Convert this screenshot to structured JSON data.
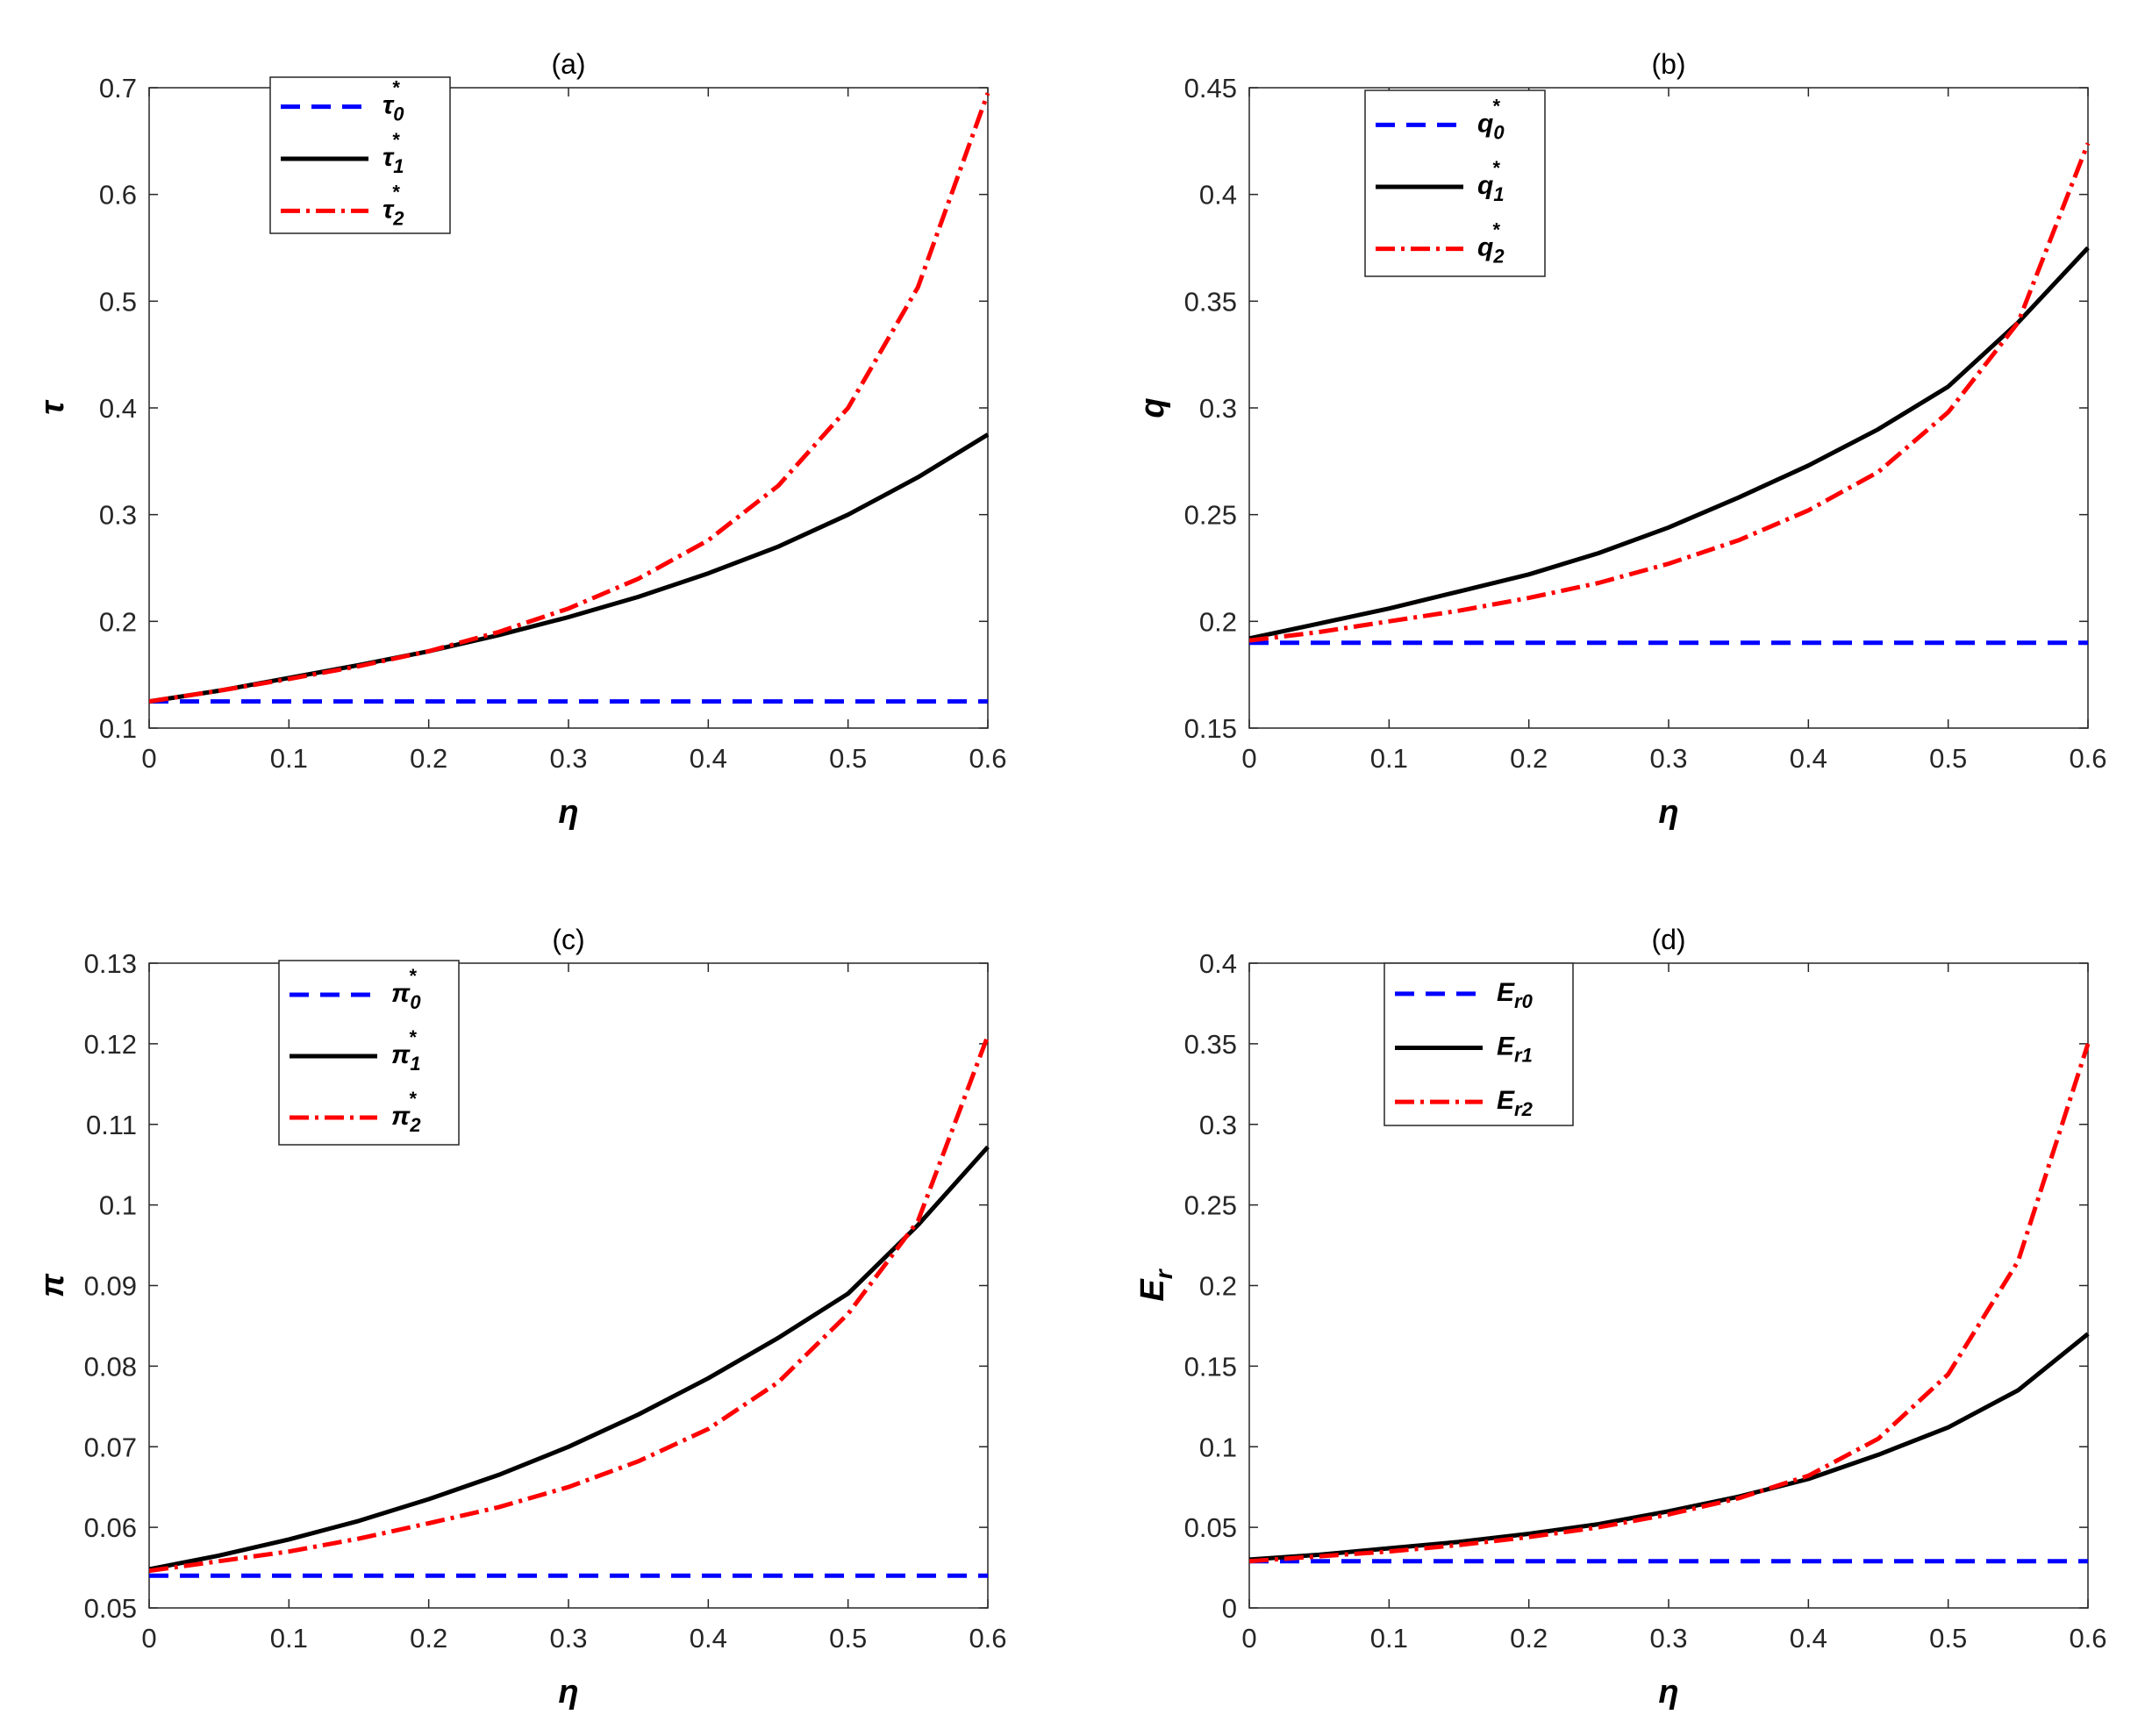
{
  "chart_data": [
    {
      "type": "line",
      "title": "(a)",
      "xlabel": "η",
      "ylabel": "τ",
      "xlim": [
        0,
        0.6
      ],
      "ylim": [
        0.1,
        0.7
      ],
      "xticks": [
        "0",
        "0.1",
        "0.2",
        "0.3",
        "0.4",
        "0.5",
        "0.6"
      ],
      "yticks": [
        "0.1",
        "0.2",
        "0.3",
        "0.4",
        "0.5",
        "0.6",
        "0.7"
      ],
      "legend_position": "top-left",
      "x": [
        0,
        0.05,
        0.1,
        0.15,
        0.2,
        0.25,
        0.3,
        0.35,
        0.4,
        0.45,
        0.5,
        0.55,
        0.6
      ],
      "series": [
        {
          "name": "τ*0",
          "base": "τ",
          "sub": "0",
          "sup": "*",
          "style": "dashed",
          "color": "#0000FF",
          "values": [
            0.125,
            0.125,
            0.125,
            0.125,
            0.125,
            0.125,
            0.125,
            0.125,
            0.125,
            0.125,
            0.125,
            0.125,
            0.125
          ]
        },
        {
          "name": "τ*1",
          "base": "τ",
          "sub": "1",
          "sup": "*",
          "style": "solid",
          "color": "#000000",
          "values": [
            0.125,
            0.135,
            0.147,
            0.159,
            0.172,
            0.187,
            0.204,
            0.223,
            0.245,
            0.27,
            0.3,
            0.335,
            0.375
          ]
        },
        {
          "name": "τ*2",
          "base": "τ",
          "sub": "2",
          "sup": "*",
          "style": "dashdot",
          "color": "#FF0000",
          "values": [
            0.125,
            0.135,
            0.146,
            0.158,
            0.172,
            0.19,
            0.212,
            0.24,
            0.276,
            0.327,
            0.4,
            0.513,
            0.695
          ]
        }
      ]
    },
    {
      "type": "line",
      "title": "(b)",
      "xlabel": "η",
      "ylabel": "q",
      "xlim": [
        0,
        0.6
      ],
      "ylim": [
        0.15,
        0.45
      ],
      "xticks": [
        "0",
        "0.1",
        "0.2",
        "0.3",
        "0.4",
        "0.5",
        "0.6"
      ],
      "yticks": [
        "0.15",
        "0.2",
        "0.25",
        "0.3",
        "0.35",
        "0.4",
        "0.45"
      ],
      "legend_position": "top-left",
      "x": [
        0,
        0.05,
        0.1,
        0.15,
        0.2,
        0.25,
        0.3,
        0.35,
        0.4,
        0.45,
        0.5,
        0.55,
        0.6
      ],
      "series": [
        {
          "name": "q*0",
          "base": "q",
          "sub": "0",
          "sup": "*",
          "style": "dashed",
          "color": "#0000FF",
          "values": [
            0.19,
            0.19,
            0.19,
            0.19,
            0.19,
            0.19,
            0.19,
            0.19,
            0.19,
            0.19,
            0.19,
            0.19,
            0.19
          ]
        },
        {
          "name": "q*1",
          "base": "q",
          "sub": "1",
          "sup": "*",
          "style": "solid",
          "color": "#000000",
          "values": [
            0.192,
            0.199,
            0.206,
            0.214,
            0.222,
            0.232,
            0.244,
            0.258,
            0.273,
            0.29,
            0.31,
            0.34,
            0.375
          ]
        },
        {
          "name": "q*2",
          "base": "q",
          "sub": "2",
          "sup": "*",
          "style": "dashdot",
          "color": "#FF0000",
          "values": [
            0.191,
            0.195,
            0.2,
            0.205,
            0.211,
            0.218,
            0.227,
            0.238,
            0.252,
            0.27,
            0.298,
            0.34,
            0.424
          ]
        }
      ]
    },
    {
      "type": "line",
      "title": "(c)",
      "xlabel": "η",
      "ylabel": "π",
      "xlim": [
        0,
        0.6
      ],
      "ylim": [
        0.05,
        0.13
      ],
      "xticks": [
        "0",
        "0.1",
        "0.2",
        "0.3",
        "0.4",
        "0.5",
        "0.6"
      ],
      "yticks": [
        "0.05",
        "0.06",
        "0.07",
        "0.08",
        "0.09",
        "0.1",
        "0.11",
        "0.12",
        "0.13"
      ],
      "legend_position": "top-left",
      "x": [
        0,
        0.05,
        0.1,
        0.15,
        0.2,
        0.25,
        0.3,
        0.35,
        0.4,
        0.45,
        0.5,
        0.55,
        0.6
      ],
      "series": [
        {
          "name": "π*0",
          "base": "π",
          "sub": "0",
          "sup": "*",
          "style": "dashed",
          "color": "#0000FF",
          "values": [
            0.054,
            0.054,
            0.054,
            0.054,
            0.054,
            0.054,
            0.054,
            0.054,
            0.054,
            0.054,
            0.054,
            0.054,
            0.054
          ]
        },
        {
          "name": "π*1",
          "base": "π",
          "sub": "1",
          "sup": "*",
          "style": "solid",
          "color": "#000000",
          "values": [
            0.0548,
            0.0565,
            0.0585,
            0.0608,
            0.0635,
            0.0665,
            0.07,
            0.074,
            0.0785,
            0.0835,
            0.089,
            0.0975,
            0.1072
          ]
        },
        {
          "name": "π*2",
          "base": "π",
          "sub": "2",
          "sup": "*",
          "style": "dashdot",
          "color": "#FF0000",
          "values": [
            0.0546,
            0.0558,
            0.057,
            0.0586,
            0.0605,
            0.0625,
            0.065,
            0.0682,
            0.0722,
            0.078,
            0.0865,
            0.098,
            0.121
          ]
        }
      ]
    },
    {
      "type": "line",
      "title": "(d)",
      "xlabel": "η",
      "ylabel": "E",
      "ylabel_sub": "r",
      "xlim": [
        0,
        0.6
      ],
      "ylim": [
        0,
        0.4
      ],
      "xticks": [
        "0",
        "0.1",
        "0.2",
        "0.3",
        "0.4",
        "0.5",
        "0.6"
      ],
      "yticks": [
        "0",
        "0.05",
        "0.1",
        "0.15",
        "0.2",
        "0.25",
        "0.3",
        "0.35",
        "0.4"
      ],
      "legend_position": "top-left",
      "x": [
        0,
        0.05,
        0.1,
        0.15,
        0.2,
        0.25,
        0.3,
        0.35,
        0.4,
        0.45,
        0.5,
        0.55,
        0.6
      ],
      "series": [
        {
          "name": "Er0",
          "base": "E",
          "sub": "r0",
          "sup": "",
          "style": "dashed",
          "color": "#0000FF",
          "values": [
            0.029,
            0.029,
            0.029,
            0.029,
            0.029,
            0.029,
            0.029,
            0.029,
            0.029,
            0.029,
            0.029,
            0.029,
            0.029
          ]
        },
        {
          "name": "Er1",
          "base": "E",
          "sub": "r1",
          "sup": "",
          "style": "solid",
          "color": "#000000",
          "values": [
            0.03,
            0.033,
            0.037,
            0.041,
            0.046,
            0.052,
            0.06,
            0.069,
            0.08,
            0.095,
            0.112,
            0.135,
            0.17
          ]
        },
        {
          "name": "Er2",
          "base": "E",
          "sub": "r2",
          "sup": "",
          "style": "dashdot",
          "color": "#FF0000",
          "values": [
            0.029,
            0.032,
            0.035,
            0.039,
            0.044,
            0.05,
            0.058,
            0.068,
            0.082,
            0.105,
            0.145,
            0.215,
            0.35
          ]
        }
      ]
    }
  ]
}
